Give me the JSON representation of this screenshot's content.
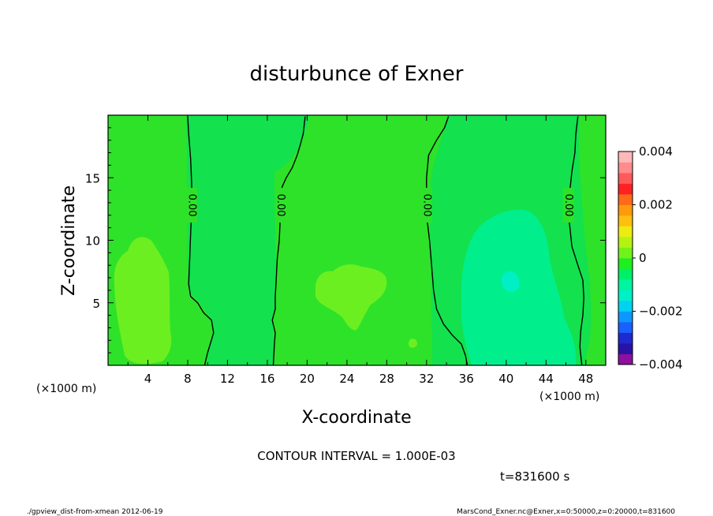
{
  "chart_data": {
    "type": "contour",
    "title": "disturbunce of Exner",
    "xlabel": "X-coordinate",
    "ylabel": "Z-coordinate",
    "x_unit": "(×1000 m)",
    "y_unit": "(×1000 m)",
    "xlim": [
      0,
      50
    ],
    "ylim": [
      0,
      20
    ],
    "xticks": [
      "4",
      "8",
      "12",
      "16",
      "20",
      "24",
      "28",
      "32",
      "36",
      "40",
      "44",
      "48"
    ],
    "yticks": [
      "5",
      "10",
      "15"
    ],
    "contour_interval": "CONTOUR INTERVAL = 1.000E-03",
    "time_label": "t=831600 s",
    "contours": [
      {
        "level": 0,
        "label": "0.00",
        "points": [
          [
            8.0,
            19.9
          ],
          [
            8.1,
            18.5
          ],
          [
            8.3,
            16.5
          ],
          [
            8.4,
            14.5
          ],
          [
            8.4,
            12.5
          ],
          [
            8.3,
            10.5
          ],
          [
            8.2,
            8.5
          ],
          [
            8.1,
            6.5
          ],
          [
            8.3,
            5.5
          ],
          [
            9.0,
            5.0
          ],
          [
            9.6,
            4.2
          ],
          [
            10.4,
            3.6
          ],
          [
            10.6,
            2.6
          ],
          [
            10.3,
            1.8
          ],
          [
            10.0,
            1.0
          ],
          [
            9.7,
            0.0
          ]
        ]
      },
      {
        "level": 0,
        "label": "0.00",
        "points": [
          [
            19.8,
            19.9
          ],
          [
            19.6,
            18.5
          ],
          [
            19.3,
            17.6
          ],
          [
            19.0,
            16.8
          ],
          [
            18.5,
            15.8
          ],
          [
            17.9,
            15.0
          ],
          [
            17.5,
            14.3
          ],
          [
            17.3,
            13.4
          ],
          [
            17.3,
            11.8
          ],
          [
            17.2,
            10.0
          ],
          [
            17.0,
            8.5
          ],
          [
            16.9,
            7.0
          ],
          [
            16.8,
            5.5
          ],
          [
            16.8,
            4.5
          ],
          [
            16.5,
            3.6
          ],
          [
            16.8,
            2.6
          ],
          [
            16.7,
            1.6
          ],
          [
            16.6,
            0.0
          ]
        ]
      },
      {
        "level": 0,
        "label": "0.00",
        "points": [
          [
            34.2,
            19.9
          ],
          [
            33.8,
            19.0
          ],
          [
            33.0,
            18.0
          ],
          [
            32.2,
            16.8
          ],
          [
            32.0,
            15.0
          ],
          [
            32.0,
            12.0
          ],
          [
            32.3,
            10.0
          ],
          [
            32.5,
            8.0
          ],
          [
            32.7,
            6.0
          ],
          [
            33.0,
            4.5
          ],
          [
            33.7,
            3.3
          ],
          [
            34.6,
            2.4
          ],
          [
            35.5,
            1.7
          ],
          [
            35.9,
            0.8
          ],
          [
            36.1,
            0.0
          ]
        ]
      },
      {
        "level": 0,
        "label": "0.00",
        "points": [
          [
            47.2,
            19.9
          ],
          [
            47.0,
            18.5
          ],
          [
            46.9,
            17.0
          ],
          [
            46.6,
            15.5
          ],
          [
            46.4,
            14.0
          ],
          [
            46.2,
            12.5
          ],
          [
            46.4,
            11.0
          ],
          [
            46.6,
            9.5
          ],
          [
            47.2,
            8.0
          ],
          [
            47.7,
            6.8
          ],
          [
            47.8,
            5.4
          ],
          [
            47.7,
            4.0
          ],
          [
            47.5,
            2.8
          ],
          [
            47.4,
            1.5
          ],
          [
            47.6,
            0.0
          ]
        ]
      }
    ],
    "colorbar": {
      "ticks": [
        "0.004",
        "0.002",
        "0",
        "−0.002",
        "−0.004"
      ],
      "range": [
        -0.004,
        0.004
      ],
      "colors": [
        "#8e0fa0",
        "#2a12a6",
        "#1e2ad0",
        "#1a60ff",
        "#0b99ff",
        "#00d2f0",
        "#00f0c8",
        "#00f5a0",
        "#00ef68",
        "#1ef020",
        "#72f21a",
        "#b4f212",
        "#ecec10",
        "#ffbf10",
        "#ff9a0a",
        "#ff6a1a",
        "#ff2222",
        "#ff5a5a",
        "#ff8c8c",
        "#ffb8b8"
      ]
    }
  },
  "footer": {
    "left": "./gpview_dist-from-xmean  2012-06-19",
    "right": "MarsCond_Exner.nc@Exner,x=0:50000,z=0:20000,t=831600"
  }
}
